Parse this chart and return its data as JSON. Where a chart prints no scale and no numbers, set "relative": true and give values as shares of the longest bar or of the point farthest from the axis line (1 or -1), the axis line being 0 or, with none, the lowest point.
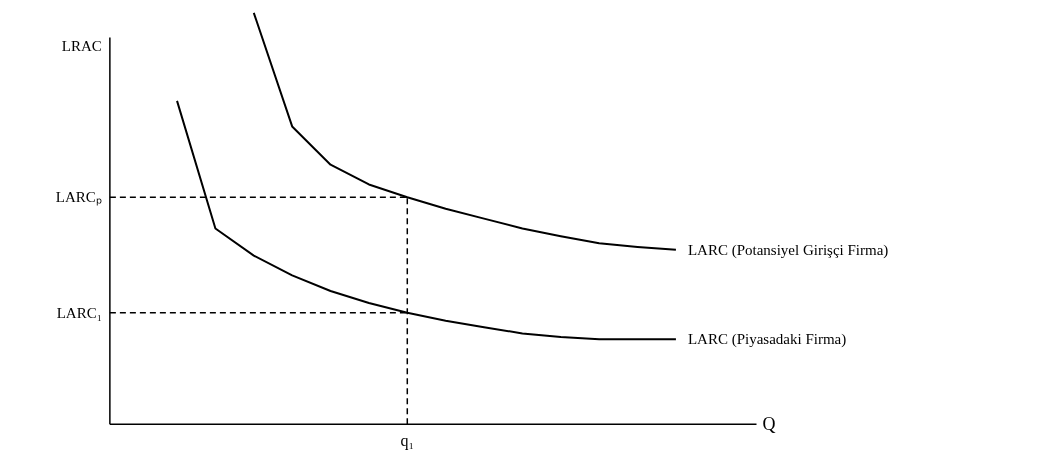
{
  "chart_data": {
    "type": "line",
    "relative": true,
    "xlabel": "Q",
    "ylabel": "LRAC",
    "grid": false,
    "marker": "none",
    "line_style": "solid",
    "categories": [
      null,
      null,
      null,
      null,
      null,
      null,
      null,
      null,
      null,
      null,
      null,
      null,
      null,
      null
    ],
    "annotations": [
      "q₁"
    ],
    "series": [
      {
        "name": "LARC (Potansiyel Girişçi Firma)",
        "color": "#000000",
        "values": [
          null,
          null,
          1.0,
          0.724,
          0.631,
          0.583,
          0.552,
          0.524,
          0.5,
          0.476,
          0.457,
          0.44,
          0.431,
          0.424
        ]
      },
      {
        "name": "LARC (Piyasadaki Firma)",
        "color": "#000000",
        "values": [
          0.786,
          0.476,
          0.41,
          0.362,
          0.324,
          0.295,
          0.271,
          0.252,
          0.236,
          0.221,
          0.212,
          0.207,
          0.207,
          0.207
        ]
      }
    ],
    "ref_lines": [
      {
        "axis": "y",
        "value": 0.552,
        "label": "LARCₚ",
        "line_style": "dashed"
      },
      {
        "axis": "y",
        "value": 0.271,
        "label": "LARC₁",
        "line_style": "dashed"
      }
    ]
  }
}
